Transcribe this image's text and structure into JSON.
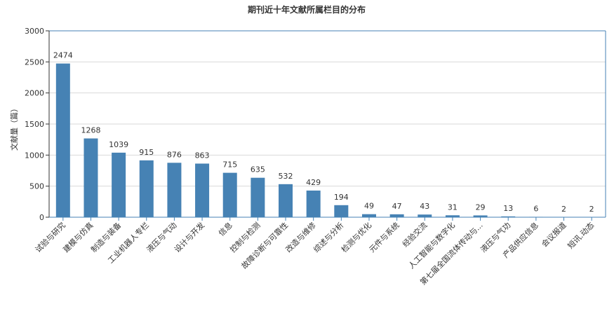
{
  "chart_data": {
    "type": "bar",
    "title": "期刊近十年文献所属栏目的分布",
    "xlabel": "",
    "ylabel": "文献量（篇）",
    "ylim": [
      0,
      3000
    ],
    "yticks": [
      0,
      500,
      1000,
      1500,
      2000,
      2500,
      3000
    ],
    "grid": true,
    "legend": "none",
    "bar_color": "#4682b4",
    "categories": [
      "试验与研究",
      "建模与仿真",
      "制造与装备",
      "工业机器人专栏",
      "液压与气动",
      "设计与开发",
      "信息",
      "控制与检测",
      "故障诊断与可靠性",
      "改造与维修",
      "综述与分析",
      "检测与优化",
      "元件与系统",
      "经验交流",
      "人工智能与数字化",
      "第七届全国流体传动与...",
      "液压与气功",
      "产品供应信息",
      "会议报道",
      "短讯.动态"
    ],
    "values": [
      2474,
      1268,
      1039,
      915,
      876,
      863,
      715,
      635,
      532,
      429,
      194,
      49,
      47,
      43,
      31,
      29,
      13,
      6,
      2,
      2
    ]
  }
}
